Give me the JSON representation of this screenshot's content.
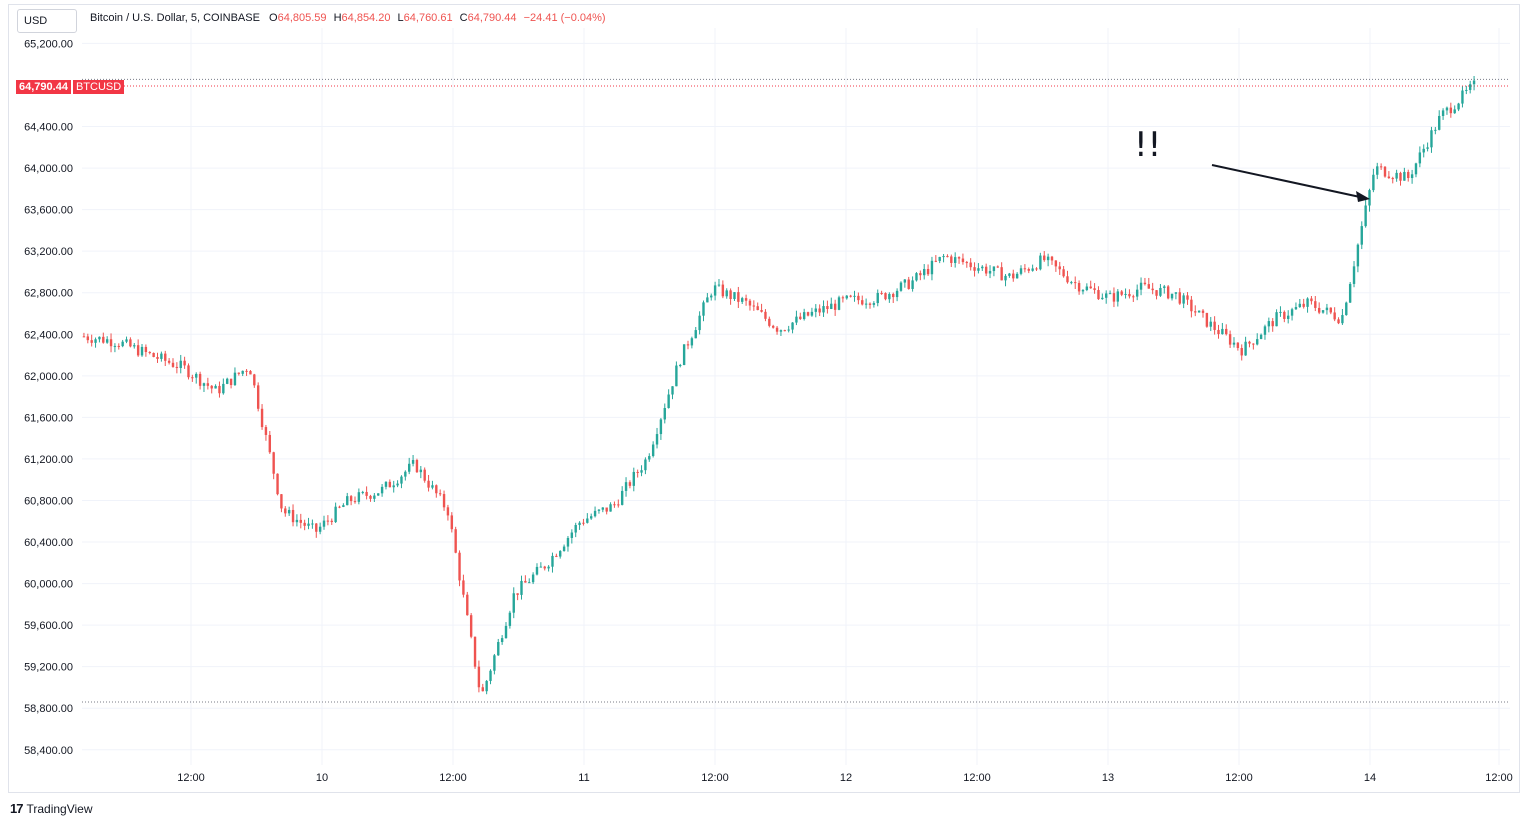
{
  "header": {
    "currency": "USD",
    "symbol_name": "Bitcoin / U.S. Dollar, 5, COINBASE",
    "open_label": "O",
    "open_value": "64,805.59",
    "high_label": "H",
    "high_value": "64,854.20",
    "low_label": "L",
    "low_value": "64,760.61",
    "close_label": "C",
    "close_value": "64,790.44",
    "change": "−24.41 (−0.04%)"
  },
  "last_price_tag": {
    "price": "64,790.44",
    "symbol": "BTCUSD"
  },
  "annotation": {
    "text": "!!"
  },
  "footer": {
    "brand": "TradingView",
    "logo": "17"
  },
  "colors": {
    "up": "#26a69a",
    "down": "#ef5350",
    "grid": "#f0f3fa",
    "axis_text": "#131722",
    "last_price": "#f23645"
  },
  "chart_data": {
    "type": "line",
    "style": "candlestick",
    "interval": "5",
    "x": [
      "2024-03-09 05:00",
      "09:00",
      "12:00",
      "15:00",
      "18:00",
      "21:00",
      "2024-03-10 00:00",
      "03:00",
      "06:00",
      "09:00",
      "12:00",
      "15:00",
      "18:00",
      "21:00",
      "2024-03-11 00:00",
      "03:00",
      "06:00",
      "09:00",
      "12:00",
      "15:00",
      "18:00",
      "21:00",
      "2024-03-12 00:00",
      "03:00",
      "06:00",
      "09:00",
      "12:00",
      "15:00",
      "18:00",
      "21:00",
      "2024-03-13 00:00",
      "03:00",
      "06:00",
      "09:00",
      "12:00",
      "15:00",
      "18:00",
      "21:00",
      "2024-03-14 00:00",
      "03:00",
      "06:00",
      "09:00",
      "10:30"
    ],
    "y": [
      62380,
      62330,
      62200,
      62080,
      61850,
      62100,
      60700,
      60500,
      60800,
      60900,
      61150,
      60700,
      58900,
      59900,
      60200,
      60600,
      60750,
      61200,
      62150,
      62850,
      62700,
      62450,
      62600,
      62720,
      62750,
      62900,
      63150,
      63050,
      62950,
      63120,
      62880,
      62750,
      62850,
      62780,
      62500,
      62250,
      62550,
      62700,
      62550,
      64000,
      63900,
      64500,
      64790
    ],
    "x_ticks": [
      "12:00",
      "10",
      "12:00",
      "11",
      "12:00",
      "12",
      "12:00",
      "13",
      "12:00",
      "14",
      "12:00"
    ],
    "y_ticks": [
      "65,200.00",
      "64,400.00",
      "64,000.00",
      "63,600.00",
      "63,200.00",
      "62,800.00",
      "62,400.00",
      "62,000.00",
      "61,600.00",
      "61,200.00",
      "60,800.00",
      "60,400.00",
      "60,000.00",
      "59,600.00",
      "59,200.00",
      "58,800.00",
      "58,400.00"
    ],
    "ylim": [
      58200,
      65400
    ],
    "high_line": 64854.2,
    "low_line": 58860,
    "grid": true,
    "legend": "top-left"
  }
}
